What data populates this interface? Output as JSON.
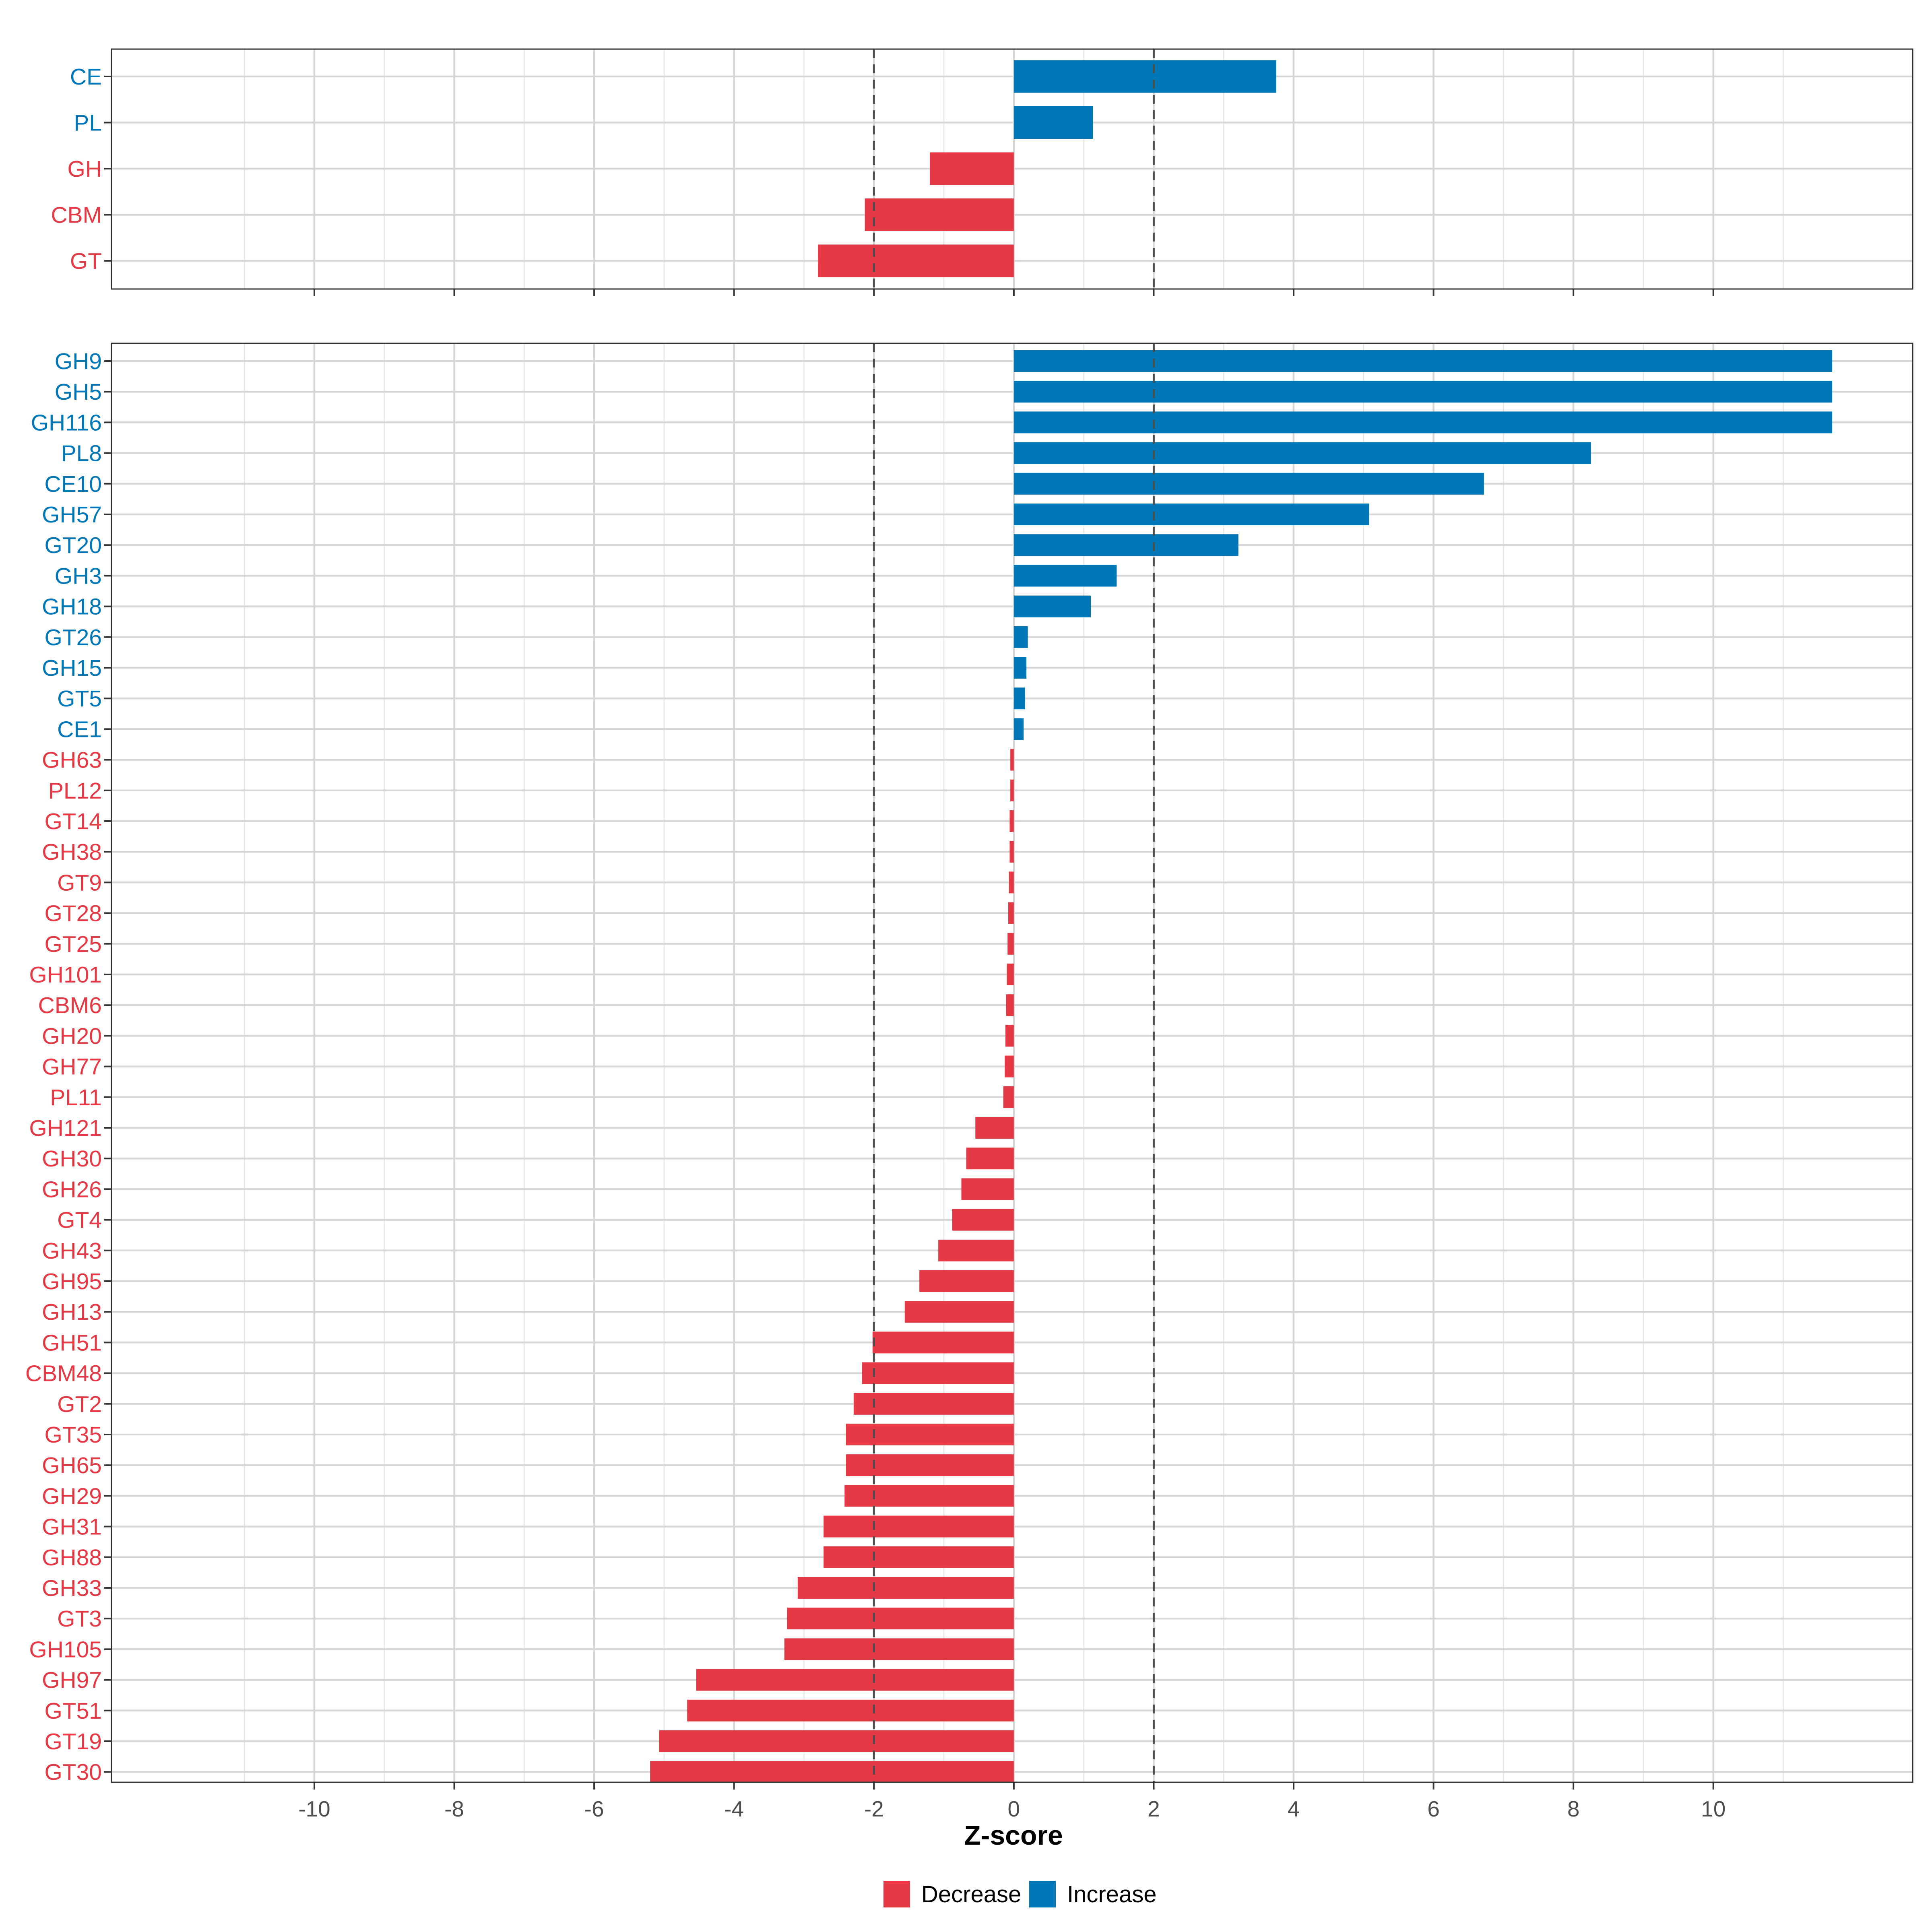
{
  "colors": {
    "decrease": "#e63946",
    "increase": "#0077b6"
  },
  "chart_data": [
    {
      "type": "bar",
      "orientation": "horizontal",
      "panel": "top",
      "categories": [
        "CE",
        "PL",
        "GH",
        "CBM",
        "GT"
      ],
      "values": [
        3.75,
        1.13,
        -1.2,
        -2.13,
        -2.8
      ],
      "groups": [
        "Increase",
        "Increase",
        "Decrease",
        "Decrease",
        "Decrease"
      ],
      "xlim": [
        -12.9,
        12.85
      ],
      "reference_lines": [
        -2,
        2
      ],
      "grid": true
    },
    {
      "type": "bar",
      "orientation": "horizontal",
      "panel": "bottom",
      "categories": [
        "GH9",
        "GH5",
        "GH116",
        "PL8",
        "CE10",
        "GH57",
        "GT20",
        "GH3",
        "GH18",
        "GT26",
        "GH15",
        "GT5",
        "CE1",
        "GH63",
        "PL12",
        "GT14",
        "GH38",
        "GT9",
        "GT28",
        "GT25",
        "GH101",
        "CBM6",
        "GH20",
        "GH77",
        "PL11",
        "GH121",
        "GH30",
        "GH26",
        "GT4",
        "GH43",
        "GH95",
        "GH13",
        "GH51",
        "CBM48",
        "GT2",
        "GT35",
        "GH65",
        "GH29",
        "GH31",
        "GH88",
        "GH33",
        "GT3",
        "GH105",
        "GH97",
        "GT51",
        "GT19",
        "GT30"
      ],
      "values": [
        11.7,
        11.7,
        11.7,
        8.25,
        6.72,
        5.08,
        3.21,
        1.47,
        1.1,
        0.2,
        0.18,
        0.16,
        0.14,
        -0.05,
        -0.05,
        -0.06,
        -0.06,
        -0.07,
        -0.08,
        -0.09,
        -0.1,
        -0.11,
        -0.12,
        -0.13,
        -0.15,
        -0.55,
        -0.68,
        -0.75,
        -0.88,
        -1.08,
        -1.35,
        -1.56,
        -2.02,
        -2.17,
        -2.29,
        -2.4,
        -2.4,
        -2.42,
        -2.72,
        -2.72,
        -3.09,
        -3.24,
        -3.28,
        -4.54,
        -4.67,
        -5.07,
        -5.2
      ],
      "groups": [
        "Increase",
        "Increase",
        "Increase",
        "Increase",
        "Increase",
        "Increase",
        "Increase",
        "Increase",
        "Increase",
        "Increase",
        "Increase",
        "Increase",
        "Increase",
        "Decrease",
        "Decrease",
        "Decrease",
        "Decrease",
        "Decrease",
        "Decrease",
        "Decrease",
        "Decrease",
        "Decrease",
        "Decrease",
        "Decrease",
        "Decrease",
        "Decrease",
        "Decrease",
        "Decrease",
        "Decrease",
        "Decrease",
        "Decrease",
        "Decrease",
        "Decrease",
        "Decrease",
        "Decrease",
        "Decrease",
        "Decrease",
        "Decrease",
        "Decrease",
        "Decrease",
        "Decrease",
        "Decrease",
        "Decrease",
        "Decrease",
        "Decrease",
        "Decrease",
        "Decrease"
      ],
      "xlim": [
        -12.9,
        12.85
      ],
      "xticks": [
        -10,
        -8,
        -6,
        -4,
        -2,
        0,
        2,
        4,
        6,
        8,
        10
      ],
      "xtick_labels": [
        "-10",
        "-8",
        "-6",
        "-4",
        "-2",
        "0",
        "2",
        "4",
        "6",
        "8",
        "10"
      ],
      "xlabel": "Z-score",
      "reference_lines": [
        -2,
        2
      ],
      "grid": true
    }
  ],
  "legend": {
    "placement": "bottom",
    "items": [
      {
        "label": "Decrease",
        "color": "#e63946"
      },
      {
        "label": "Increase",
        "color": "#0077b6"
      }
    ]
  }
}
